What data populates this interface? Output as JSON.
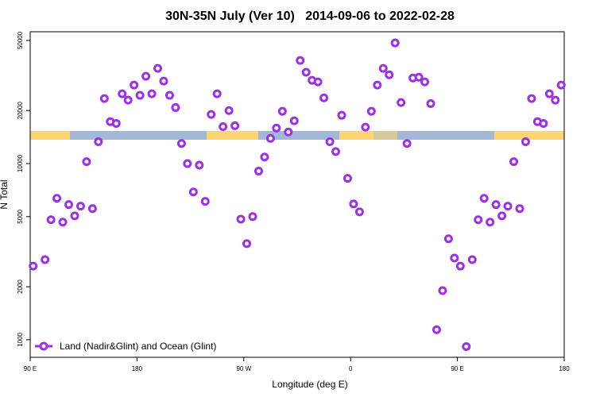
{
  "chart_data": {
    "type": "scatter",
    "title": "30N-35N July (Ver 10)   2014-09-06 to 2022-02-28",
    "x_label": "Longitude (deg E)",
    "y_label": "N Total",
    "log_y": true,
    "legend_position": "lower left",
    "xlim": [
      90,
      540
    ],
    "ylim": [
      795,
      56000
    ],
    "xticks": [
      {
        "value": 90,
        "label": "90 E"
      },
      180,
      {
        "value": 270,
        "label": "90 W"
      },
      {
        "value": 360,
        "label": "0"
      },
      {
        "value": 450,
        "label": "90 E"
      },
      {
        "value": 540,
        "label": "180"
      }
    ],
    "yticks": [
      1000,
      2000,
      5000,
      10000,
      20000,
      50000
    ],
    "series": [
      {
        "name": "Land (Nadir&Glint) and Ocean (Glint)",
        "color": "#9b30e8",
        "x": [
          92.5,
          102.5,
          107.5,
          112.5,
          117.5,
          122.5,
          127.5,
          132.5,
          137.5,
          142.5,
          147.5,
          152.5,
          157.5,
          162.5,
          167.5,
          172.5,
          177.5,
          182.5,
          187.5,
          192.5,
          197.5,
          202.5,
          207.5,
          212.5,
          217.5,
          222.5,
          227.5,
          232.5,
          237.5,
          242.5,
          247.5,
          252.5,
          257.5,
          262.5,
          267.5,
          272.5,
          277.5,
          282.5,
          287.5,
          292.5,
          297.5,
          302.5,
          307.5,
          312.5,
          317.5,
          322.5,
          327.5,
          332.5,
          337.5,
          342.5,
          347.5,
          352.5,
          357.5,
          362.5,
          367.5,
          372.5,
          377.5,
          382.5,
          387.5,
          392.5,
          397.5,
          402.5,
          407.5,
          412.5,
          417.5,
          422.5,
          427.5,
          432.5,
          437.5,
          442.5,
          447.5,
          452.5,
          457.5,
          462.5,
          467.5,
          472.5,
          477.5,
          482.5,
          487.5,
          492.5,
          497.5,
          502.5,
          507.5,
          512.5,
          517.5,
          522.5,
          527.5,
          532.5,
          537.5
        ],
        "values": [
          2620,
          2850,
          4800,
          6350,
          4650,
          5850,
          5050,
          5730,
          10250,
          5550,
          13300,
          23400,
          17300,
          16900,
          24900,
          22900,
          27900,
          24400,
          31300,
          24900,
          34700,
          29400,
          24400,
          20800,
          13000,
          10000,
          6900,
          9800,
          6100,
          19000,
          24900,
          16200,
          20000,
          16400,
          4840,
          3510,
          5000,
          9060,
          10900,
          13900,
          15900,
          19800,
          15100,
          17500,
          38500,
          33000,
          29700,
          29100,
          23600,
          13300,
          11700,
          18800,
          8240,
          5900,
          5320,
          16100,
          19800,
          27900,
          34700,
          31900,
          48400,
          22200,
          13000,
          30600,
          30900,
          29100,
          21900,
          1140,
          1900,
          3740,
          2910,
          2620,
          915,
          2850,
          4800,
          6350,
          4650,
          5850,
          5050,
          5730,
          10250,
          5550,
          13300,
          23400,
          17300,
          16900,
          24900,
          22900,
          27900
        ]
      }
    ]
  }
}
